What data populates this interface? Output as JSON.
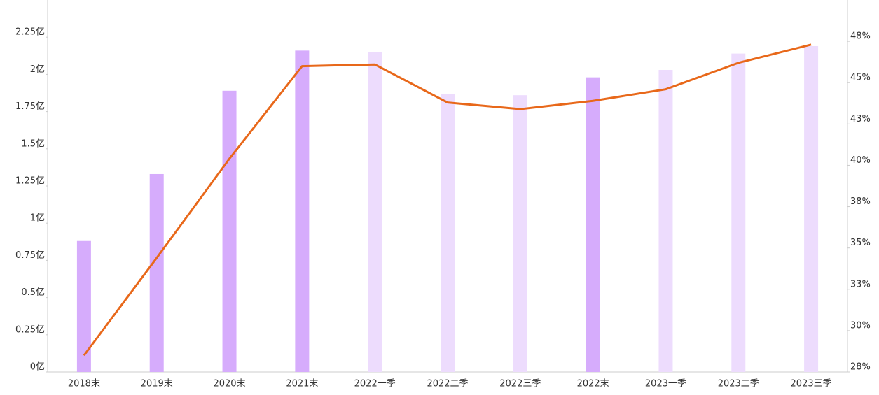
{
  "chart_data": {
    "type": "bar-line",
    "categories": [
      "2018末",
      "2019末",
      "2020末",
      "2021末",
      "2022一季",
      "2022二季",
      "2022三季",
      "2022末",
      "2023一季",
      "2023二季",
      "2023三季"
    ],
    "series": [
      {
        "type": "bar",
        "values": [
          0.88,
          1.33,
          1.89,
          2.16,
          2.15,
          1.87,
          1.86,
          1.98,
          2.03,
          2.14,
          2.19
        ],
        "colors": [
          "#d6acfc",
          "#d6acfc",
          "#d6acfc",
          "#d6acfc",
          "#eddcfd",
          "#eddcfd",
          "#eddcfd",
          "#d6acfc",
          "#eddcfd",
          "#eddcfd",
          "#eddcfd"
        ]
      },
      {
        "type": "line",
        "axis": "y2",
        "color": "#e8681a",
        "values": [
          28.5,
          34.4,
          40.4,
          46.0,
          46.1,
          43.8,
          43.4,
          43.9,
          44.6,
          46.2,
          47.3
        ]
      }
    ],
    "ylim": [
      0,
      2.5
    ],
    "yticks": [
      {
        "value": 0,
        "label": "0亿"
      },
      {
        "value": 0.25,
        "label": "0.25亿"
      },
      {
        "value": 0.5,
        "label": "0.5亿"
      },
      {
        "value": 0.75,
        "label": "0.75亿"
      },
      {
        "value": 1,
        "label": "1亿"
      },
      {
        "value": 1.25,
        "label": "1.25亿"
      },
      {
        "value": 1.5,
        "label": "1.5亿"
      },
      {
        "value": 1.75,
        "label": "1.75亿"
      },
      {
        "value": 2,
        "label": "2亿"
      },
      {
        "value": 2.25,
        "label": "2.25亿"
      }
    ],
    "y2lim": [
      27.5,
      50
    ],
    "y2ticks": [
      {
        "value": 27.5,
        "label": "28%"
      },
      {
        "value": 30,
        "label": "30%"
      },
      {
        "value": 32.5,
        "label": "33%"
      },
      {
        "value": 35,
        "label": "35%"
      },
      {
        "value": 37.5,
        "label": "38%"
      },
      {
        "value": 40,
        "label": "40%"
      },
      {
        "value": 42.5,
        "label": "43%"
      },
      {
        "value": 45,
        "label": "45%"
      },
      {
        "value": 47.5,
        "label": "48%"
      }
    ]
  }
}
